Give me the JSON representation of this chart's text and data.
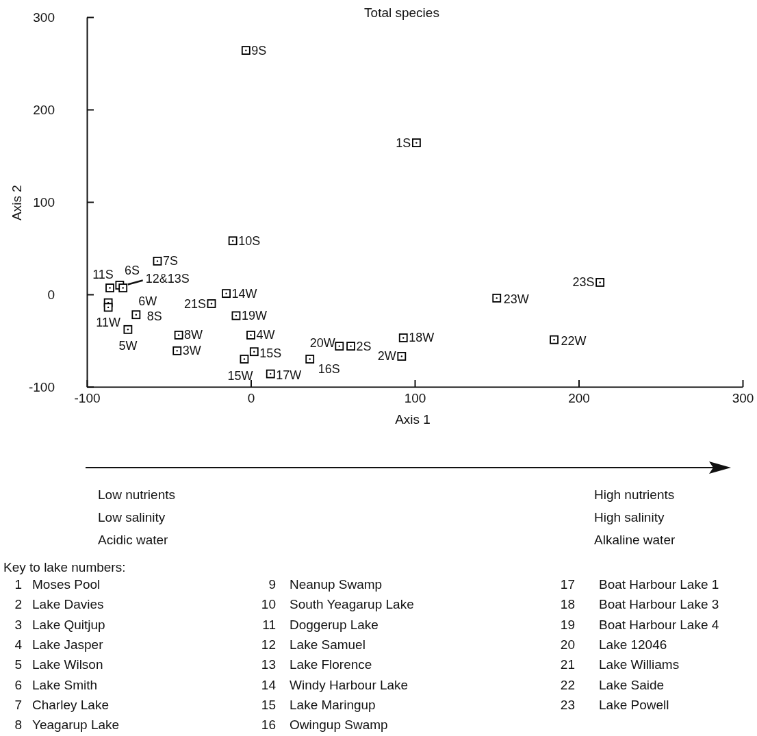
{
  "chart_data": {
    "type": "scatter",
    "title": "Total species",
    "xlabel": "Axis 1",
    "ylabel": "Axis 2",
    "xlim": [
      -100,
      300
    ],
    "ylim": [
      -100,
      300
    ],
    "xticks": [
      -100,
      0,
      100,
      200,
      300
    ],
    "yticks": [
      -100,
      0,
      100,
      200,
      300
    ],
    "marker": "square",
    "series": [
      {
        "color": "#000000",
        "x": [
          -3,
          101,
          -11,
          -57,
          -86,
          -80,
          -78,
          -87,
          -87,
          -70,
          -75,
          -44,
          -45,
          -24,
          -15,
          -9,
          0,
          2,
          -4,
          12,
          36,
          54,
          61,
          93,
          92,
          150,
          213,
          185
        ],
        "values": [
          264,
          164,
          58,
          36,
          7,
          10,
          7,
          -9,
          -14,
          -22,
          -38,
          -44,
          -61,
          -10,
          1,
          -23,
          -44,
          -62,
          -70,
          -86,
          -70,
          -56,
          -56,
          -47,
          -67,
          -4,
          13,
          -49
        ]
      }
    ],
    "annotations": [
      {
        "text": "9S",
        "x": -3,
        "y": 264
      },
      {
        "text": "1S",
        "x": 101,
        "y": 164
      },
      {
        "text": "10S",
        "x": -11,
        "y": 58
      },
      {
        "text": "7S",
        "x": -57,
        "y": 36
      },
      {
        "text": "11S",
        "x": -86,
        "y": 7
      },
      {
        "text": "6S",
        "x": -80,
        "y": 10
      },
      {
        "text": "12&13S",
        "x": -78,
        "y": 7
      },
      {
        "text": "6W",
        "x": -87,
        "y": -9
      },
      {
        "text": "11W",
        "x": -87,
        "y": -14
      },
      {
        "text": "8S",
        "x": -70,
        "y": -22
      },
      {
        "text": "5W",
        "x": -75,
        "y": -38
      },
      {
        "text": "8W",
        "x": -44,
        "y": -44
      },
      {
        "text": "3W",
        "x": -45,
        "y": -61
      },
      {
        "text": "21S",
        "x": -24,
        "y": -10
      },
      {
        "text": "14W",
        "x": -15,
        "y": 1
      },
      {
        "text": "19W",
        "x": -9,
        "y": -23
      },
      {
        "text": "4W",
        "x": 0,
        "y": -44
      },
      {
        "text": "15S",
        "x": 2,
        "y": -62
      },
      {
        "text": "15W",
        "x": -4,
        "y": -70
      },
      {
        "text": "17W",
        "x": 12,
        "y": -86
      },
      {
        "text": "16S",
        "x": 36,
        "y": -70
      },
      {
        "text": "20W",
        "x": 54,
        "y": -56
      },
      {
        "text": "2S",
        "x": 61,
        "y": -56
      },
      {
        "text": "18W",
        "x": 93,
        "y": -47
      },
      {
        "text": "2W",
        "x": 92,
        "y": -67
      },
      {
        "text": "23W",
        "x": 150,
        "y": -4
      },
      {
        "text": "23S",
        "x": 213,
        "y": 13
      },
      {
        "text": "22W",
        "x": 185,
        "y": -49
      },
      "Low nutrients\nLow salinity\nAcidic water",
      "High nutrients\nHigh salinity\nAlkaline water",
      "Key to lake numbers:",
      "1 Moses Pool",
      "2 Lake Davies",
      "3 Lake Quitjup",
      "4 Lake Jasper",
      "5 Lake Wilson",
      "6 Lake Smith",
      "7 Charley Lake",
      "8 Yeagarup Lake",
      "9 Neanup Swamp",
      "10 South Yeagarup Lake",
      "11 Doggerup Lake",
      "12 Lake Samuel",
      "13 Lake Florence",
      "14 Windy Harbour Lake",
      "15 Lake Maringup",
      "16 Owingup Swamp",
      "17 Boat Harbour Lake 1",
      "18 Boat Harbour Lake 3",
      "19 Boat Harbour Lake 4",
      "20 Lake 12046",
      "21 Lake Williams",
      "22 Lake Saide",
      "23 Lake Powell"
    ]
  }
}
